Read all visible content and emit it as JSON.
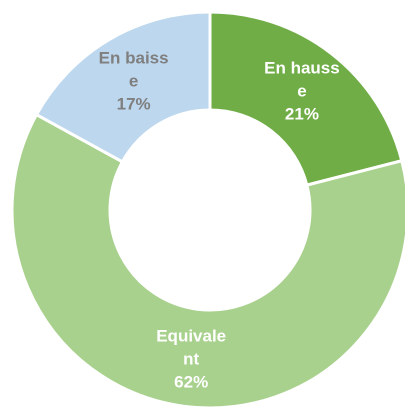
{
  "chart_data": {
    "type": "donut",
    "categories": [
      "En hausse",
      "Equivalent",
      "En baisse"
    ],
    "values": [
      21,
      62,
      17
    ],
    "value_labels": [
      "21%",
      "62%",
      "17%"
    ],
    "colors": [
      "#70ad47",
      "#a9d18e",
      "#bdd7ee"
    ]
  }
}
